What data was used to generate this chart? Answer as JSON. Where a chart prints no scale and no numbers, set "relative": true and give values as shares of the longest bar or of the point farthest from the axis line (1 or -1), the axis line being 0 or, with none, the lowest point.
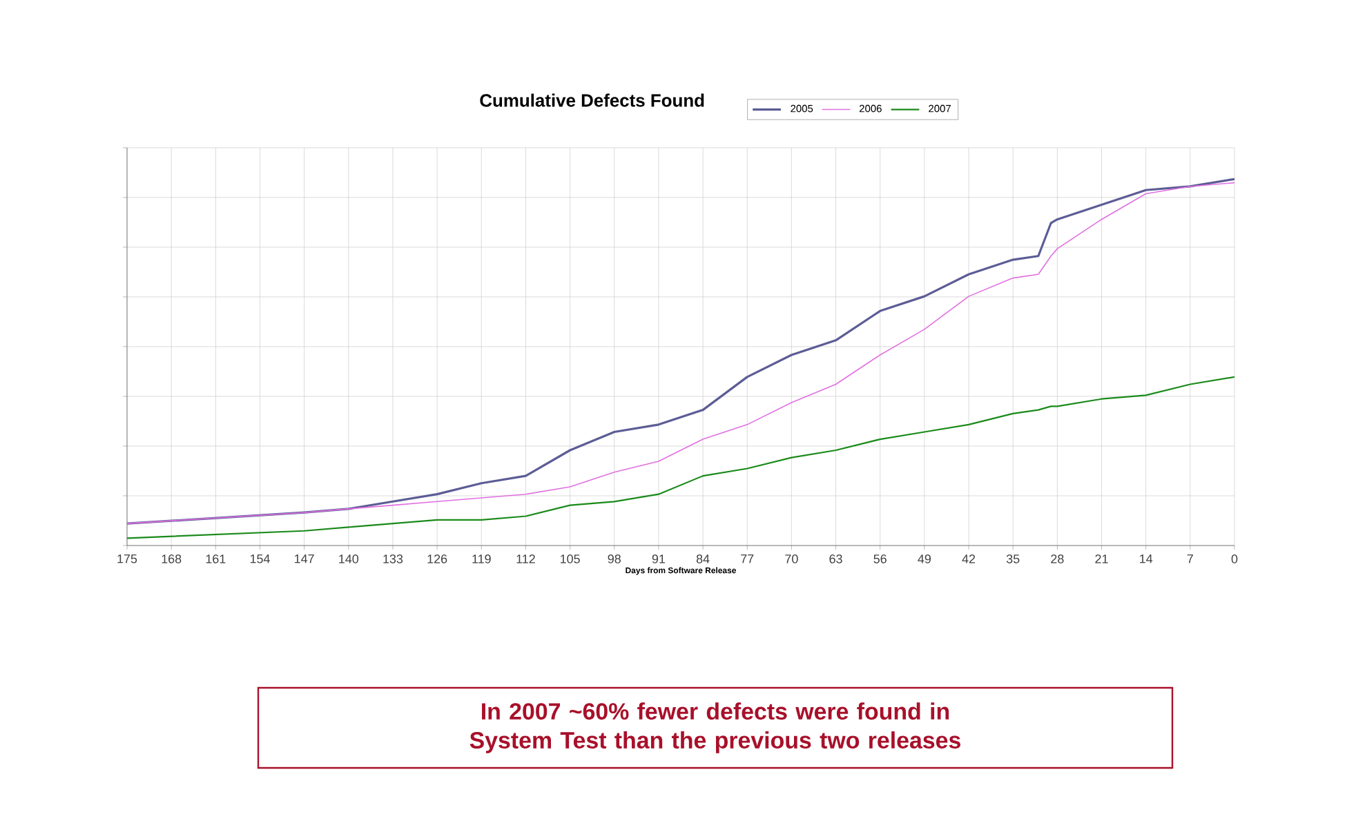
{
  "chart_data": {
    "type": "line",
    "title": "Cumulative Defects Found",
    "xlabel": "Days from Software Release",
    "relative": true,
    "x": [
      175,
      147,
      140,
      133,
      126,
      119,
      112,
      105,
      98,
      91,
      84,
      77,
      70,
      63,
      56,
      49,
      42,
      35,
      31,
      29,
      28,
      21,
      14,
      7,
      0
    ],
    "series": [
      {
        "name": "2005",
        "color": "#5c5c96",
        "values": [
          0.06,
          0.09,
          0.1,
          0.12,
          0.14,
          0.17,
          0.19,
          0.26,
          0.31,
          0.33,
          0.37,
          0.46,
          0.52,
          0.56,
          0.64,
          0.68,
          0.74,
          0.78,
          0.79,
          0.88,
          0.89,
          0.93,
          0.97,
          0.98,
          1
        ]
      },
      {
        "name": "2006",
        "color": "#e070e0",
        "values": [
          0.06,
          0.09,
          0.1,
          0.11,
          0.12,
          0.13,
          0.14,
          0.16,
          0.2,
          0.23,
          0.29,
          0.33,
          0.39,
          0.44,
          0.52,
          0.59,
          0.68,
          0.73,
          0.74,
          0.79,
          0.81,
          0.89,
          0.96,
          0.98,
          0.99
        ]
      },
      {
        "name": "2007",
        "color": "#1a8a1a",
        "values": [
          0.02,
          0.04,
          0.05,
          0.06,
          0.07,
          0.07,
          0.08,
          0.11,
          0.12,
          0.14,
          0.19,
          0.21,
          0.24,
          0.26,
          0.29,
          0.31,
          0.33,
          0.36,
          0.37,
          0.38,
          0.38,
          0.4,
          0.41,
          0.44,
          0.46
        ]
      }
    ],
    "xlim": [
      175,
      0
    ],
    "xticks": [
      175,
      168,
      161,
      154,
      147,
      140,
      133,
      126,
      119,
      112,
      105,
      98,
      91,
      84,
      77,
      70,
      63,
      56,
      49,
      42,
      35,
      28,
      21,
      14,
      7,
      0
    ],
    "grid": true,
    "legend": "top",
    "line_style": "solid",
    "marker": "none",
    "annotations": [
      "In 2007 ~60% fewer defects were found in System Test than the previous two releases"
    ]
  }
}
